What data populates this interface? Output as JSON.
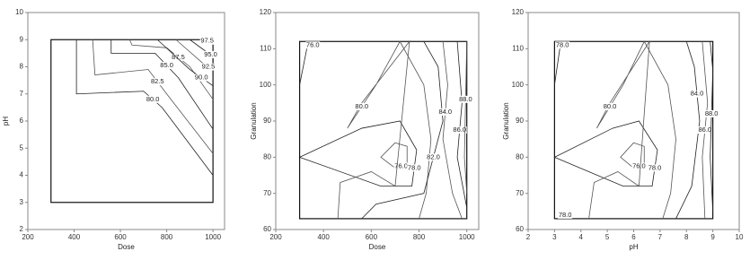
{
  "chart_data": [
    {
      "type": "contour",
      "xlabel": "Dose",
      "ylabel": "pH",
      "xlim": [
        200,
        1050
      ],
      "ylim": [
        2,
        10
      ],
      "xticks": [
        200,
        400,
        600,
        800,
        1000
      ],
      "yticks": [
        2,
        3,
        4,
        5,
        6,
        7,
        8,
        9,
        10
      ],
      "region": {
        "x": [
          300,
          1000
        ],
        "y": [
          3,
          9
        ]
      },
      "contours": [
        {
          "label": "80.0",
          "x": [
            410,
            410,
            700,
            780,
            1000
          ],
          "y": [
            9,
            7,
            7.1,
            6.5,
            4
          ]
        },
        {
          "label": "82.5",
          "x": [
            480,
            490,
            720,
            800,
            1000
          ],
          "y": [
            9,
            7.7,
            7.9,
            7,
            4.8
          ]
        },
        {
          "label": "85.0",
          "x": [
            560,
            560,
            750,
            850,
            1000
          ],
          "y": [
            9,
            8.5,
            8.5,
            7.6,
            5.7
          ]
        },
        {
          "label": "87.5",
          "x": [
            640,
            650,
            800,
            900,
            1000
          ],
          "y": [
            9,
            8.8,
            8.7,
            8,
            6.8
          ]
        },
        {
          "label": "90.0",
          "x": [
            760,
            900,
            1000
          ],
          "y": [
            9,
            7.9,
            7.3
          ]
        },
        {
          "label": "92.5",
          "x": [
            840,
            960,
            1000
          ],
          "y": [
            9,
            8.1,
            7.9
          ]
        },
        {
          "label": "95.0",
          "x": [
            900,
            980,
            1000
          ],
          "y": [
            9,
            8.5,
            8.4
          ]
        },
        {
          "label": "97.5",
          "x": [
            950,
            1000
          ],
          "y": [
            9,
            8.9
          ]
        }
      ]
    },
    {
      "type": "contour",
      "xlabel": "Dose",
      "ylabel": "Granulation",
      "xlim": [
        200,
        1050
      ],
      "ylim": [
        60,
        120
      ],
      "xticks": [
        200,
        400,
        600,
        800,
        1000
      ],
      "yticks": [
        60,
        70,
        80,
        90,
        100,
        110,
        120
      ],
      "region": {
        "x": [
          300,
          1000
        ],
        "y": [
          63,
          112
        ]
      },
      "contours": [
        {
          "label": "76.0",
          "x": [
            300,
            330,
            380
          ],
          "y": [
            100,
            110,
            112
          ]
        },
        {
          "label": "76.0",
          "x": [
            700,
            640,
            700,
            750,
            750,
            700
          ],
          "y": [
            84,
            80,
            77,
            78,
            83,
            84
          ]
        },
        {
          "label": "78.0",
          "x": [
            300,
            560,
            720,
            790,
            770,
            640,
            300
          ],
          "y": [
            80,
            88,
            90,
            82,
            72,
            72,
            80
          ]
        },
        {
          "label": "80.0",
          "x": [
            460,
            470,
            600,
            700,
            760,
            560,
            500,
            620,
            720,
            820,
            850,
            830,
            800
          ],
          "y": [
            63,
            73,
            76,
            72,
            112,
            95,
            88,
            100,
            112,
            100,
            85,
            70,
            63
          ]
        },
        {
          "label": "82.0",
          "x": [
            560,
            620,
            820,
            900,
            880,
            820
          ],
          "y": [
            63,
            67,
            70,
            90,
            105,
            112
          ]
        },
        {
          "label": "84.0",
          "x": [
            980,
            940,
            900,
            920,
            900
          ],
          "y": [
            63,
            70,
            85,
            100,
            112
          ]
        },
        {
          "label": "86.0",
          "x": [
            1000,
            960,
            980,
            960
          ],
          "y": [
            66,
            80,
            95,
            112
          ]
        },
        {
          "label": "88.0",
          "x": [
            1000,
            990,
            1000
          ],
          "y": [
            70,
            80,
            112
          ]
        }
      ]
    },
    {
      "type": "contour",
      "xlabel": "pH",
      "ylabel": "Granulation",
      "xlim": [
        2,
        10
      ],
      "ylim": [
        60,
        120
      ],
      "xticks": [
        2,
        3,
        4,
        5,
        6,
        7,
        8,
        9,
        10
      ],
      "yticks": [
        60,
        70,
        80,
        90,
        100,
        110,
        120
      ],
      "region": {
        "x": [
          3,
          9
        ],
        "y": [
          63,
          112
        ]
      },
      "contours": [
        {
          "label": "78.0",
          "x": [
            3,
            3.2,
            3.4
          ],
          "y": [
            100,
            110,
            112
          ]
        },
        {
          "label": "76.0",
          "x": [
            6,
            5.5,
            6,
            6.4,
            6.4,
            6
          ],
          "y": [
            84,
            80,
            77,
            78,
            83,
            84
          ]
        },
        {
          "label": "78.0",
          "x": [
            3,
            5.2,
            6.2,
            6.9,
            6.7,
            5.6,
            3
          ],
          "y": [
            80,
            88,
            90,
            82,
            72,
            72,
            80
          ]
        },
        {
          "label": "80.0",
          "x": [
            4.3,
            4.5,
            5.4,
            6.2,
            6.6,
            5.1,
            4.6,
            5.6,
            6.4,
            7.3,
            7.6,
            7.4,
            7.1
          ],
          "y": [
            63,
            73,
            76,
            72,
            112,
            95,
            88,
            100,
            112,
            100,
            85,
            70,
            63
          ]
        },
        {
          "label": "84.0",
          "x": [
            7.6,
            8.2,
            8.5,
            8.3,
            8.0
          ],
          "y": [
            63,
            72,
            90,
            105,
            112
          ]
        },
        {
          "label": "86.0",
          "x": [
            8.7,
            8.6,
            8.8,
            8.6
          ],
          "y": [
            63,
            80,
            95,
            112
          ]
        },
        {
          "label": "88.0",
          "x": [
            9,
            8.9,
            9,
            8.9
          ],
          "y": [
            65,
            80,
            104,
            112
          ]
        },
        {
          "label": "78.0",
          "x": [
            3.2,
            3.6
          ],
          "y": [
            63,
            65
          ]
        }
      ]
    }
  ]
}
